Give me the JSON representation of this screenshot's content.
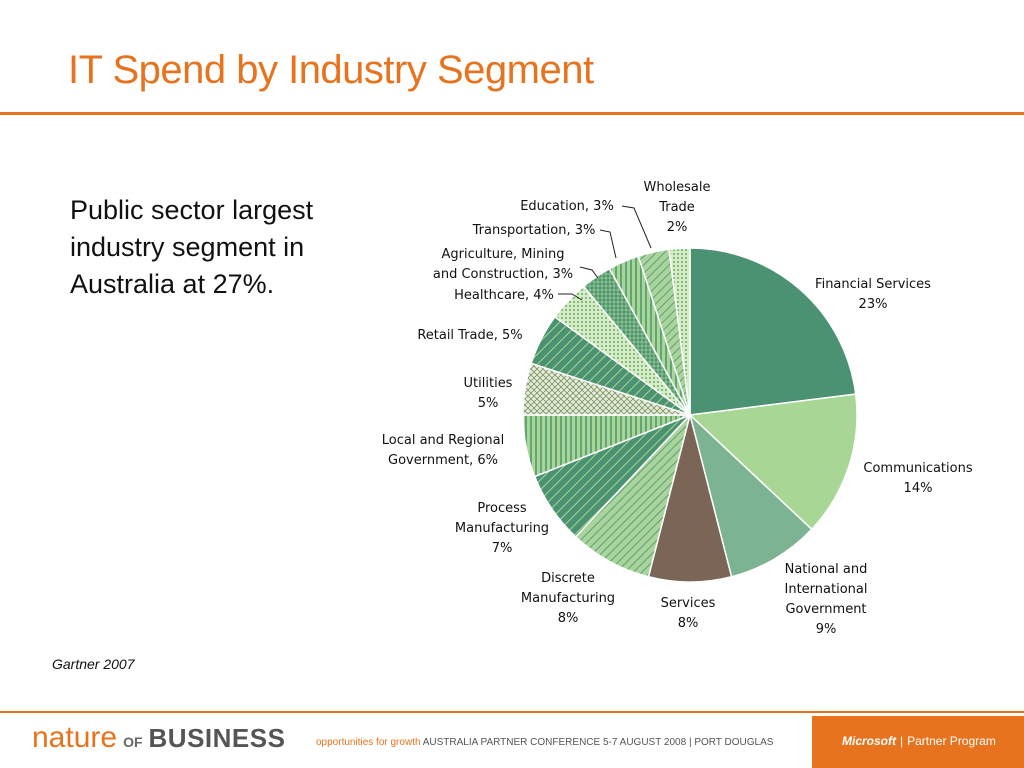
{
  "slide": {
    "title": "IT Spend by Industry Segment",
    "bullet": "Public sector largest industry segment in Australia at 27%.",
    "source": "Gartner  2007"
  },
  "footer": {
    "logo_nature": "nature",
    "logo_of": "OF",
    "logo_business": "BUSINESS",
    "tagline_lead": "opportunities for growth",
    "tagline_rest": "AUSTRALIA PARTNER CONFERENCE  5-7 AUGUST 2008 | PORT DOUGLAS",
    "ms_brand": "Microsoft",
    "ms_program": "Partner Program",
    "accent": "#e8731e"
  },
  "chart_data": {
    "type": "pie",
    "unit": "%",
    "slices": [
      {
        "name": "Financial Services",
        "value": 23,
        "label_lines": [
          "Financial Services",
          "23%"
        ],
        "color": "#4a9271",
        "pattern": "solid"
      },
      {
        "name": "Communications",
        "value": 14,
        "label_lines": [
          "Communications",
          "14%"
        ],
        "color": "#a8d695",
        "pattern": "solid"
      },
      {
        "name": "National and International Government",
        "value": 9,
        "label_lines": [
          "National and",
          "International",
          "Government",
          "9%"
        ],
        "color": "#7cb393",
        "pattern": "solid"
      },
      {
        "name": "Services",
        "value": 8,
        "label_lines": [
          "Services",
          "8%"
        ],
        "color": "#7a6557",
        "pattern": "solid"
      },
      {
        "name": "Discrete Manufacturing",
        "value": 8,
        "label_lines": [
          "Discrete",
          "Manufacturing",
          "8%"
        ],
        "color": "#7cba85",
        "pattern": "diag-light"
      },
      {
        "name": "Process Manufacturing",
        "value": 7,
        "label_lines": [
          "Process",
          "Manufacturing",
          "7%"
        ],
        "color": "#4a9271",
        "pattern": "diag-dark"
      },
      {
        "name": "Local and Regional Government",
        "value": 6,
        "label_lines": [
          "Local and Regional",
          "Government, 6%"
        ],
        "color": "#7cba85",
        "pattern": "vertical"
      },
      {
        "name": "Utilities",
        "value": 5,
        "label_lines": [
          "Utilities",
          "5%"
        ],
        "color": "#d9e8c4",
        "pattern": "cross"
      },
      {
        "name": "Retail Trade",
        "value": 5,
        "label_lines": [
          "Retail Trade, 5%"
        ],
        "color": "#5e9e7d",
        "pattern": "diag-dark"
      },
      {
        "name": "Healthcare",
        "value": 4,
        "label_lines": [
          "Healthcare, 4%"
        ],
        "color": "#cfeab4",
        "pattern": "dots"
      },
      {
        "name": "Agriculture, Mining and Construction",
        "value": 3,
        "label_lines": [
          "Agriculture, Mining",
          "and Construction, 3%"
        ],
        "color": "#4a9271",
        "pattern": "grid"
      },
      {
        "name": "Transportation",
        "value": 3,
        "label_lines": [
          "Transportation, 3%"
        ],
        "color": "#c2e3a6",
        "pattern": "vertical"
      },
      {
        "name": "Education",
        "value": 3,
        "label_lines": [
          "Education, 3%"
        ],
        "color": "#8a7a6a",
        "pattern": "diag-light"
      },
      {
        "name": "Wholesale Trade",
        "value": 2,
        "label_lines": [
          "Wholesale",
          "Trade",
          "2%"
        ],
        "color": "#7cb393",
        "pattern": "dots"
      }
    ]
  }
}
